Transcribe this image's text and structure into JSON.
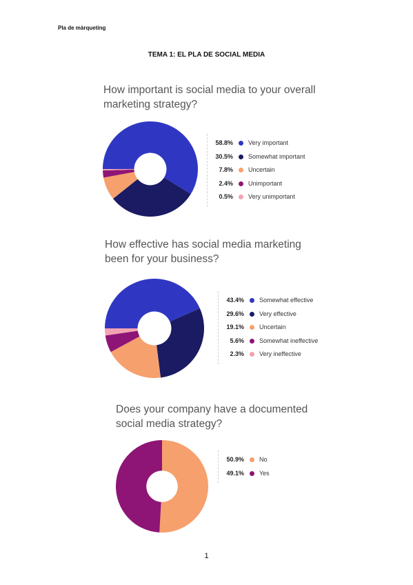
{
  "header": {
    "doc_label": "Pla de màrqueting",
    "section_title": "TEMA 1: EL PLA DE SOCIAL MEDIA"
  },
  "footer": {
    "page_number": "1"
  },
  "chart_data": [
    {
      "type": "pie",
      "title": "How important is social media to your overall marketing strategy?",
      "values": [
        58.8,
        30.5,
        7.8,
        2.4,
        0.5
      ],
      "value_labels": [
        "58.8%",
        "30.5%",
        "7.8%",
        "2.4%",
        "0.5%"
      ],
      "labels": [
        "Very important",
        "Somewhat important",
        "Uncertain",
        "Unimportant",
        "Very unimportant"
      ],
      "colors": [
        "#2f37c2",
        "#1a1b62",
        "#f6a06d",
        "#8e1575",
        "#f2a3b3"
      ]
    },
    {
      "type": "pie",
      "title": "How effective has social media marketing been for your business?",
      "values": [
        43.4,
        29.6,
        19.1,
        5.6,
        2.3
      ],
      "value_labels": [
        "43.4%",
        "29.6%",
        "19.1%",
        "5.6%",
        "2.3%"
      ],
      "labels": [
        "Somewhat effective",
        "Very effective",
        "Uncertain",
        "Somewhat ineffective",
        "Very ineffective"
      ],
      "colors": [
        "#2f37c2",
        "#1a1b62",
        "#f6a06d",
        "#8e1575",
        "#f2a3b3"
      ]
    },
    {
      "type": "pie",
      "title": "Does your company have a documented social media strategy?",
      "values": [
        50.9,
        49.1
      ],
      "value_labels": [
        "50.9%",
        "49.1%"
      ],
      "labels": [
        "No",
        "Yes"
      ],
      "colors": [
        "#f6a06d",
        "#8e1575"
      ]
    }
  ]
}
